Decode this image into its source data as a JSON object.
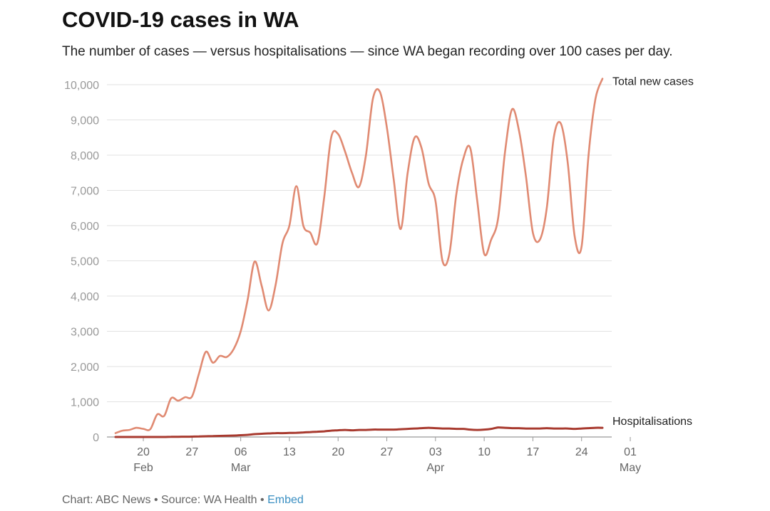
{
  "title": "COVID-19 cases in WA",
  "subtitle": "The number of cases — versus hospitalisations — since WA began recording over 100 cases per day.",
  "footer": {
    "chart": "Chart: ABC News",
    "separator": "•",
    "source": "Source: WA Health",
    "embed": "Embed"
  },
  "chart_data": {
    "type": "line",
    "title": "COVID-19 cases in WA",
    "xlabel": "",
    "ylabel": "",
    "x_start": "2022-02-16",
    "y_ticks": [
      0,
      1000,
      2000,
      3000,
      4000,
      5000,
      6000,
      7000,
      8000,
      9000,
      10000
    ],
    "y_tick_labels": [
      "0",
      "1,000",
      "2,000",
      "3,000",
      "4,000",
      "5,000",
      "6,000",
      "7,000",
      "8,000",
      "9,000",
      "10,000"
    ],
    "ylim": [
      0,
      10000
    ],
    "x_ticks": [
      {
        "date": "2022-02-20",
        "label": "20",
        "sublabel": "Feb"
      },
      {
        "date": "2022-02-27",
        "label": "27",
        "sublabel": ""
      },
      {
        "date": "2022-03-06",
        "label": "06",
        "sublabel": "Mar"
      },
      {
        "date": "2022-03-13",
        "label": "13",
        "sublabel": ""
      },
      {
        "date": "2022-03-20",
        "label": "20",
        "sublabel": ""
      },
      {
        "date": "2022-03-27",
        "label": "27",
        "sublabel": ""
      },
      {
        "date": "2022-04-03",
        "label": "03",
        "sublabel": "Apr"
      },
      {
        "date": "2022-04-10",
        "label": "10",
        "sublabel": ""
      },
      {
        "date": "2022-04-17",
        "label": "17",
        "sublabel": ""
      },
      {
        "date": "2022-04-24",
        "label": "24",
        "sublabel": ""
      },
      {
        "date": "2022-05-01",
        "label": "01",
        "sublabel": "May"
      }
    ],
    "grid": true,
    "legend": "end-labels",
    "series": [
      {
        "name": "Total new cases",
        "color": "#e08a72",
        "values": [
          110,
          180,
          200,
          260,
          230,
          220,
          640,
          600,
          1100,
          1030,
          1130,
          1150,
          1800,
          2420,
          2110,
          2300,
          2270,
          2500,
          3000,
          3900,
          4980,
          4300,
          3590,
          4300,
          5500,
          6000,
          7120,
          6000,
          5800,
          5500,
          6800,
          8500,
          8600,
          8100,
          7500,
          7100,
          8000,
          9600,
          9800,
          8800,
          7300,
          5900,
          7500,
          8500,
          8200,
          7200,
          6700,
          5000,
          5200,
          6900,
          7900,
          8200,
          6700,
          5200,
          5600,
          6200,
          8100,
          9300,
          8700,
          7400,
          5800,
          5600,
          6500,
          8500,
          8900,
          7800,
          5700,
          5400,
          8000,
          9600,
          10170
        ]
      },
      {
        "name": "Hospitalisations",
        "color": "#a83a2f",
        "values": [
          0,
          0,
          0,
          0,
          0,
          0,
          0,
          0,
          5,
          5,
          8,
          10,
          15,
          20,
          25,
          30,
          35,
          40,
          50,
          60,
          80,
          90,
          100,
          110,
          110,
          115,
          120,
          130,
          140,
          150,
          160,
          180,
          190,
          200,
          190,
          200,
          200,
          210,
          210,
          210,
          210,
          220,
          230,
          240,
          250,
          260,
          250,
          240,
          240,
          230,
          230,
          210,
          200,
          210,
          230,
          270,
          260,
          250,
          250,
          240,
          240,
          240,
          250,
          240,
          240,
          240,
          230,
          240,
          250,
          260,
          260
        ]
      }
    ]
  }
}
